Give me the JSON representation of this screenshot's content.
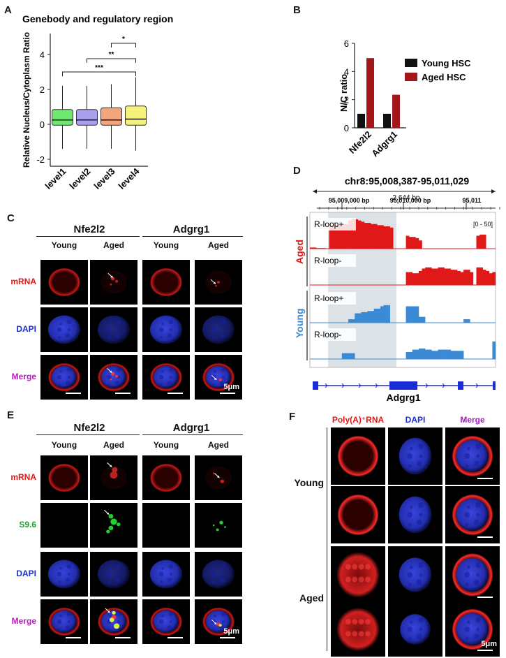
{
  "panels": {
    "A": "A",
    "B": "B",
    "C": "C",
    "D": "D",
    "E": "E",
    "F": "F"
  },
  "chart_data": [
    {
      "type": "box",
      "title": "Genebody and regulatory region",
      "ylabel": "Relative Nucleus/Cytoplasm Ratio",
      "xlabel": "",
      "ylim": [
        -2.4,
        5.2
      ],
      "yticks": [
        "-2",
        "0",
        "2",
        "4"
      ],
      "categories": [
        "level1",
        "level2",
        "level3",
        "level4"
      ],
      "colors": [
        "#6fe86f",
        "#a9a0f0",
        "#f5a57a",
        "#f4f27a"
      ],
      "boxes": [
        {
          "name": "level1",
          "whisker_low": -1.4,
          "q1": -0.05,
          "median": 0.25,
          "q3": 0.85,
          "whisker_high": 2.2
        },
        {
          "name": "level2",
          "whisker_low": -1.4,
          "q1": -0.05,
          "median": 0.25,
          "q3": 0.85,
          "whisker_high": 2.2
        },
        {
          "name": "level3",
          "whisker_low": -1.4,
          "q1": -0.05,
          "median": 0.25,
          "q3": 0.95,
          "whisker_high": 2.3
        },
        {
          "name": "level4",
          "whisker_low": -1.5,
          "q1": -0.05,
          "median": 0.3,
          "q3": 1.05,
          "whisker_high": 2.7
        }
      ],
      "significance": [
        {
          "from": "level3",
          "to": "level4",
          "label": "*"
        },
        {
          "from": "level2",
          "to": "level4",
          "label": "**"
        },
        {
          "from": "level1",
          "to": "level4",
          "label": "***"
        }
      ]
    },
    {
      "type": "bar",
      "ylabel": "N/C ratio",
      "ylim": [
        0,
        6
      ],
      "yticks": [
        "0",
        "2",
        "4",
        "6"
      ],
      "categories": [
        "Nfe2l2",
        "Adgrg1"
      ],
      "series": [
        {
          "name": "Young HSC",
          "color": "#111111",
          "values": [
            1.0,
            1.0
          ]
        },
        {
          "name": "Aged HSC",
          "color": "#a3161a",
          "values": [
            4.95,
            2.35
          ]
        }
      ]
    },
    {
      "type": "area",
      "title": "chr8:95,008,387-95,011,029",
      "span": "2,644 bp",
      "ticks": [
        "95,009,000 bp",
        "95,010,000 bp",
        "95,011"
      ],
      "range_label": "[0 - 50]",
      "gene": "Adgrg1",
      "groups": [
        {
          "name": "Aged",
          "color": "#e01818"
        },
        {
          "name": "Young",
          "color": "#3a8ad6"
        }
      ],
      "tracks": [
        {
          "group": "Aged",
          "label": "R-loop+",
          "color": "#e01818",
          "values": [
            2,
            2,
            1,
            1,
            1,
            0,
            40,
            40,
            40,
            40,
            42,
            42,
            48,
            50,
            50,
            48,
            46,
            44,
            44,
            42,
            42,
            40,
            40,
            38,
            38,
            36,
            0,
            0,
            0,
            0,
            22,
            20,
            20,
            18,
            14,
            0,
            0,
            0,
            0,
            0,
            0,
            0,
            0,
            0,
            0,
            0,
            0,
            0,
            0,
            0,
            0,
            0,
            22,
            24,
            24,
            0,
            0,
            0
          ]
        },
        {
          "group": "Aged",
          "label": "R-loop-",
          "color": "#e01818",
          "values": [
            0,
            0,
            0,
            0,
            0,
            0,
            0,
            0,
            0,
            0,
            0,
            0,
            0,
            0,
            0,
            0,
            0,
            0,
            0,
            0,
            0,
            0,
            0,
            0,
            0,
            0,
            0,
            0,
            0,
            0,
            22,
            22,
            20,
            20,
            24,
            28,
            30,
            30,
            28,
            28,
            30,
            30,
            28,
            28,
            26,
            26,
            24,
            22,
            26,
            26,
            22,
            0,
            30,
            30,
            26,
            24,
            20,
            22
          ]
        },
        {
          "group": "Young",
          "label": "R-loop+",
          "color": "#3a8ad6",
          "values": [
            0,
            0,
            0,
            0,
            0,
            0,
            0,
            0,
            0,
            0,
            0,
            0,
            6,
            6,
            16,
            16,
            18,
            18,
            20,
            20,
            24,
            24,
            28,
            30,
            30,
            0,
            0,
            0,
            0,
            0,
            28,
            28,
            28,
            28,
            10,
            10,
            0,
            0,
            0,
            0,
            0,
            0,
            0,
            0,
            0,
            0,
            0,
            0,
            6,
            6,
            0,
            0,
            0,
            0,
            0,
            0,
            0,
            0
          ]
        },
        {
          "group": "Young",
          "label": "R-loop-",
          "color": "#3a8ad6",
          "values": [
            0,
            0,
            0,
            0,
            0,
            0,
            0,
            0,
            0,
            0,
            10,
            10,
            10,
            10,
            0,
            0,
            0,
            0,
            0,
            0,
            0,
            0,
            0,
            0,
            0,
            0,
            0,
            0,
            0,
            0,
            12,
            12,
            16,
            16,
            18,
            18,
            16,
            16,
            14,
            14,
            16,
            16,
            16,
            16,
            14,
            14,
            14,
            14,
            0,
            0,
            0,
            0,
            0,
            0,
            0,
            0,
            0,
            30
          ]
        }
      ]
    }
  ],
  "panel_c": {
    "genes": [
      "Nfe2l2",
      "Adgrg1"
    ],
    "columns": [
      "Young",
      "Aged",
      "Young",
      "Aged"
    ],
    "rows": [
      "mRNA",
      "DAPI",
      "Merge"
    ],
    "scale": "5μm"
  },
  "panel_e": {
    "genes": [
      "Nfe2l2",
      "Adgrg1"
    ],
    "columns": [
      "Young",
      "Aged",
      "Young",
      "Aged"
    ],
    "rows": [
      "mRNA",
      "S9.6",
      "DAPI",
      "Merge"
    ],
    "scale": "5μm"
  },
  "panel_f": {
    "columns": [
      "Poly(A)⁺RNA",
      "DAPI",
      "Merge"
    ],
    "groups": [
      "Young",
      "Aged"
    ],
    "scale": "5μm"
  }
}
